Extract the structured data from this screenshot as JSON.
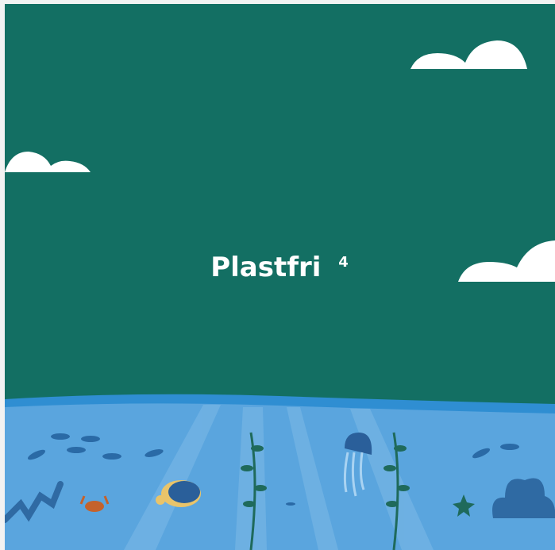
{
  "title": "Plastfri",
  "superscript": "4"
}
